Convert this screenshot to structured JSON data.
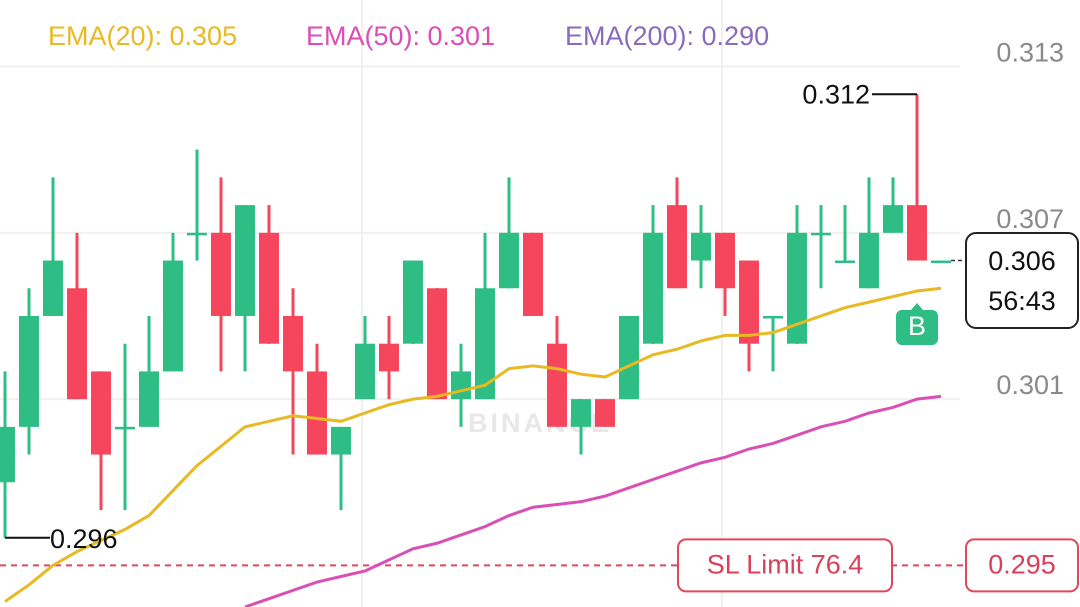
{
  "chart_data": {
    "type": "candlestick",
    "open": [
      0.298,
      0.3,
      0.304,
      0.305,
      0.302,
      0.3,
      0.3,
      0.302,
      0.307,
      0.307,
      0.304,
      0.307,
      0.304,
      0.302,
      0.299,
      0.301,
      0.303,
      0.303,
      0.305,
      0.301,
      0.301,
      0.305,
      0.307,
      0.303,
      0.3,
      0.301,
      0.301,
      0.303,
      0.308,
      0.306,
      0.307,
      0.306,
      0.304,
      0.303,
      0.307,
      0.306,
      0.305,
      0.307,
      0.308,
      0.306
    ],
    "high": [
      0.302,
      0.305,
      0.309,
      0.307,
      0.302,
      0.303,
      0.304,
      0.307,
      0.31,
      0.309,
      0.308,
      0.308,
      0.305,
      0.303,
      0.3,
      0.304,
      0.304,
      0.306,
      0.305,
      0.303,
      0.307,
      0.309,
      0.307,
      0.304,
      0.301,
      0.301,
      0.304,
      0.308,
      0.309,
      0.308,
      0.307,
      0.306,
      0.304,
      0.308,
      0.308,
      0.308,
      0.309,
      0.309,
      0.312,
      0.306
    ],
    "low": [
      0.296,
      0.299,
      0.304,
      0.301,
      0.297,
      0.297,
      0.3,
      0.302,
      0.306,
      0.302,
      0.302,
      0.303,
      0.299,
      0.299,
      0.297,
      0.301,
      0.301,
      0.303,
      0.301,
      0.3,
      0.301,
      0.305,
      0.304,
      0.3,
      0.299,
      0.3,
      0.301,
      0.303,
      0.305,
      0.305,
      0.304,
      0.302,
      0.302,
      0.303,
      0.305,
      0.306,
      0.305,
      0.307,
      0.306,
      0.306
    ],
    "close": [
      0.3,
      0.304,
      0.306,
      0.301,
      0.299,
      0.3,
      0.302,
      0.306,
      0.307,
      0.304,
      0.308,
      0.303,
      0.302,
      0.299,
      0.3,
      0.303,
      0.302,
      0.306,
      0.301,
      0.302,
      0.305,
      0.307,
      0.304,
      0.3,
      0.301,
      0.3,
      0.304,
      0.307,
      0.305,
      0.307,
      0.305,
      0.303,
      0.304,
      0.307,
      0.307,
      0.306,
      0.307,
      0.308,
      0.306,
      0.306
    ],
    "up_color": "#2ebd85",
    "down_color": "#f6465d",
    "series": [
      {
        "name": "EMA(20): 0.305",
        "color": "#e8b923",
        "values": [
          0.2937,
          0.2943,
          0.295,
          0.2955,
          0.2959,
          0.2963,
          0.2968,
          0.2977,
          0.2986,
          0.2993,
          0.3,
          0.3002,
          0.3004,
          0.3003,
          0.3002,
          0.3005,
          0.3008,
          0.301,
          0.3011,
          0.3013,
          0.3015,
          0.3021,
          0.3022,
          0.3021,
          0.3019,
          0.3018,
          0.3022,
          0.3026,
          0.3028,
          0.3031,
          0.3033,
          0.3033,
          0.3034,
          0.3037,
          0.304,
          0.3043,
          0.3045,
          0.3047,
          0.3049,
          0.305
        ]
      },
      {
        "name": "EMA(50): 0.301",
        "color": "#d94fb5",
        "values": [
          null,
          null,
          null,
          null,
          null,
          null,
          null,
          null,
          null,
          null,
          0.2935,
          0.2938,
          0.2941,
          0.2944,
          0.2946,
          0.2948,
          0.2952,
          0.2956,
          0.2958,
          0.2961,
          0.2964,
          0.2968,
          0.2971,
          0.2972,
          0.2973,
          0.2975,
          0.2978,
          0.2981,
          0.2984,
          0.2987,
          0.2989,
          0.2992,
          0.2994,
          0.2997,
          0.3,
          0.3002,
          0.3005,
          0.3007,
          0.301,
          0.3011
        ]
      },
      {
        "name": "EMA(200): 0.290",
        "color": "#8a6bbf",
        "values": [
          null,
          null,
          null,
          null,
          null,
          null,
          null,
          null,
          null,
          null,
          null,
          null,
          null,
          null,
          null,
          null,
          null,
          null,
          null,
          null,
          null,
          null,
          null,
          null,
          null,
          null,
          null,
          null,
          null,
          null,
          null,
          null,
          null,
          null,
          null,
          null,
          null,
          null,
          null,
          null
        ]
      }
    ],
    "ylim": [
      0.2935,
      0.3154
    ],
    "yticks": [
      0.301,
      0.307,
      0.313
    ],
    "grid": true,
    "high_label": "0.312",
    "low_label": "0.296",
    "current_price": "0.306",
    "countdown": "56:43",
    "marker": "B",
    "sl_label": "SL Limit 76.4",
    "sl_price": 0.295,
    "watermark": "BINANCE"
  }
}
